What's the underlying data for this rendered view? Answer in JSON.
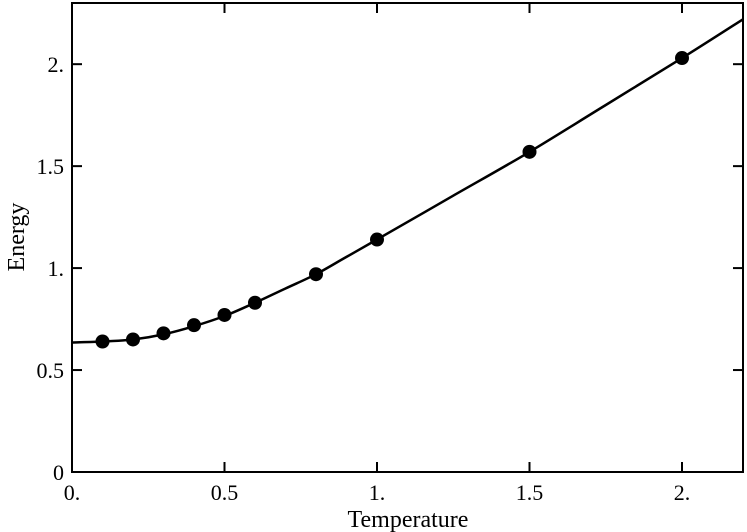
{
  "chart_data": {
    "type": "line",
    "title": "",
    "xlabel": "Temperature",
    "ylabel": "Energy",
    "xlim": [
      0,
      2.2
    ],
    "ylim": [
      0,
      2.3
    ],
    "grid": false,
    "x_ticks": [
      {
        "value": 0,
        "label": "0."
      },
      {
        "value": 0.5,
        "label": "0.5"
      },
      {
        "value": 1,
        "label": "1."
      },
      {
        "value": 1.5,
        "label": "1.5"
      },
      {
        "value": 2,
        "label": "2."
      }
    ],
    "y_ticks": [
      {
        "value": 0,
        "label": "0"
      },
      {
        "value": 0.5,
        "label": "0.5"
      },
      {
        "value": 1,
        "label": "1."
      },
      {
        "value": 1.5,
        "label": "1.5"
      },
      {
        "value": 2,
        "label": "2."
      }
    ],
    "points": {
      "x": [
        0.1,
        0.2,
        0.3,
        0.4,
        0.5,
        0.6,
        0.8,
        1.0,
        1.5,
        2.0
      ],
      "y": [
        0.64,
        0.65,
        0.68,
        0.72,
        0.77,
        0.83,
        0.97,
        1.14,
        1.57,
        2.03
      ]
    },
    "curve": {
      "x": [
        0,
        0.1,
        0.2,
        0.3,
        0.4,
        0.5,
        0.6,
        0.7,
        0.8,
        0.9,
        1.0,
        1.25,
        1.5,
        1.75,
        2.0,
        2.2
      ],
      "y": [
        0.635,
        0.64,
        0.65,
        0.675,
        0.715,
        0.765,
        0.83,
        0.9,
        0.97,
        1.055,
        1.14,
        1.355,
        1.57,
        1.8,
        2.03,
        2.22
      ]
    },
    "colors": {
      "line": "#000000",
      "marker": "#000000"
    }
  }
}
